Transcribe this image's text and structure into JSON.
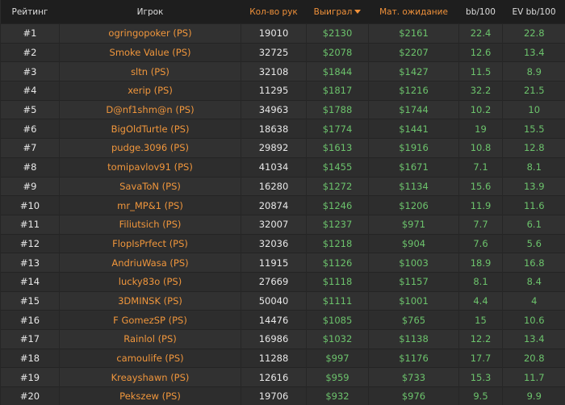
{
  "colors": {
    "accent": "#f0913a",
    "positive": "#6cc36c"
  },
  "headers": {
    "rank": "Рейтинг",
    "player": "Игрок",
    "hands": "Кол-во рук",
    "won": "Выиграл",
    "ev": "Мат. ожидание",
    "bb": "bb/100",
    "evbb": "EV bb/100"
  },
  "sort": {
    "column": "won",
    "direction": "desc"
  },
  "rows": [
    {
      "rank": "#1",
      "player": "ogringopoker (PS)",
      "hands": "19010",
      "won": "$2130",
      "ev": "$2161",
      "bb": "22.4",
      "evbb": "22.8"
    },
    {
      "rank": "#2",
      "player": "Smoke Value (PS)",
      "hands": "32725",
      "won": "$2078",
      "ev": "$2207",
      "bb": "12.6",
      "evbb": "13.4"
    },
    {
      "rank": "#3",
      "player": "sltn (PS)",
      "hands": "32108",
      "won": "$1844",
      "ev": "$1427",
      "bb": "11.5",
      "evbb": "8.9"
    },
    {
      "rank": "#4",
      "player": "xerip (PS)",
      "hands": "11295",
      "won": "$1817",
      "ev": "$1216",
      "bb": "32.2",
      "evbb": "21.5"
    },
    {
      "rank": "#5",
      "player": "D@nf1shm@n (PS)",
      "hands": "34963",
      "won": "$1788",
      "ev": "$1744",
      "bb": "10.2",
      "evbb": "10"
    },
    {
      "rank": "#6",
      "player": "BigOldTurtle (PS)",
      "hands": "18638",
      "won": "$1774",
      "ev": "$1441",
      "bb": "19",
      "evbb": "15.5"
    },
    {
      "rank": "#7",
      "player": "pudge.3096 (PS)",
      "hands": "29892",
      "won": "$1613",
      "ev": "$1916",
      "bb": "10.8",
      "evbb": "12.8"
    },
    {
      "rank": "#8",
      "player": "tomipavlov91 (PS)",
      "hands": "41034",
      "won": "$1455",
      "ev": "$1671",
      "bb": "7.1",
      "evbb": "8.1"
    },
    {
      "rank": "#9",
      "player": "SavaToN (PS)",
      "hands": "16280",
      "won": "$1272",
      "ev": "$1134",
      "bb": "15.6",
      "evbb": "13.9"
    },
    {
      "rank": "#10",
      "player": "mr_MP&1 (PS)",
      "hands": "20874",
      "won": "$1246",
      "ev": "$1206",
      "bb": "11.9",
      "evbb": "11.6"
    },
    {
      "rank": "#11",
      "player": "Filiutsich (PS)",
      "hands": "32007",
      "won": "$1237",
      "ev": "$971",
      "bb": "7.7",
      "evbb": "6.1"
    },
    {
      "rank": "#12",
      "player": "FlopIsPrfect (PS)",
      "hands": "32036",
      "won": "$1218",
      "ev": "$904",
      "bb": "7.6",
      "evbb": "5.6"
    },
    {
      "rank": "#13",
      "player": "AndriuWasa (PS)",
      "hands": "11915",
      "won": "$1126",
      "ev": "$1003",
      "bb": "18.9",
      "evbb": "16.8"
    },
    {
      "rank": "#14",
      "player": "lucky83o (PS)",
      "hands": "27669",
      "won": "$1118",
      "ev": "$1157",
      "bb": "8.1",
      "evbb": "8.4"
    },
    {
      "rank": "#15",
      "player": "3DMINSK (PS)",
      "hands": "50040",
      "won": "$1111",
      "ev": "$1001",
      "bb": "4.4",
      "evbb": "4"
    },
    {
      "rank": "#16",
      "player": "F GomezSP (PS)",
      "hands": "14476",
      "won": "$1085",
      "ev": "$765",
      "bb": "15",
      "evbb": "10.6"
    },
    {
      "rank": "#17",
      "player": "Rainlol (PS)",
      "hands": "16986",
      "won": "$1032",
      "ev": "$1138",
      "bb": "12.2",
      "evbb": "13.4"
    },
    {
      "rank": "#18",
      "player": "camoulife (PS)",
      "hands": "11288",
      "won": "$997",
      "ev": "$1176",
      "bb": "17.7",
      "evbb": "20.8"
    },
    {
      "rank": "#19",
      "player": "Kreayshawn (PS)",
      "hands": "12616",
      "won": "$959",
      "ev": "$733",
      "bb": "15.3",
      "evbb": "11.7"
    },
    {
      "rank": "#20",
      "player": "Pekszew (PS)",
      "hands": "19706",
      "won": "$932",
      "ev": "$976",
      "bb": "9.5",
      "evbb": "9.9"
    }
  ]
}
